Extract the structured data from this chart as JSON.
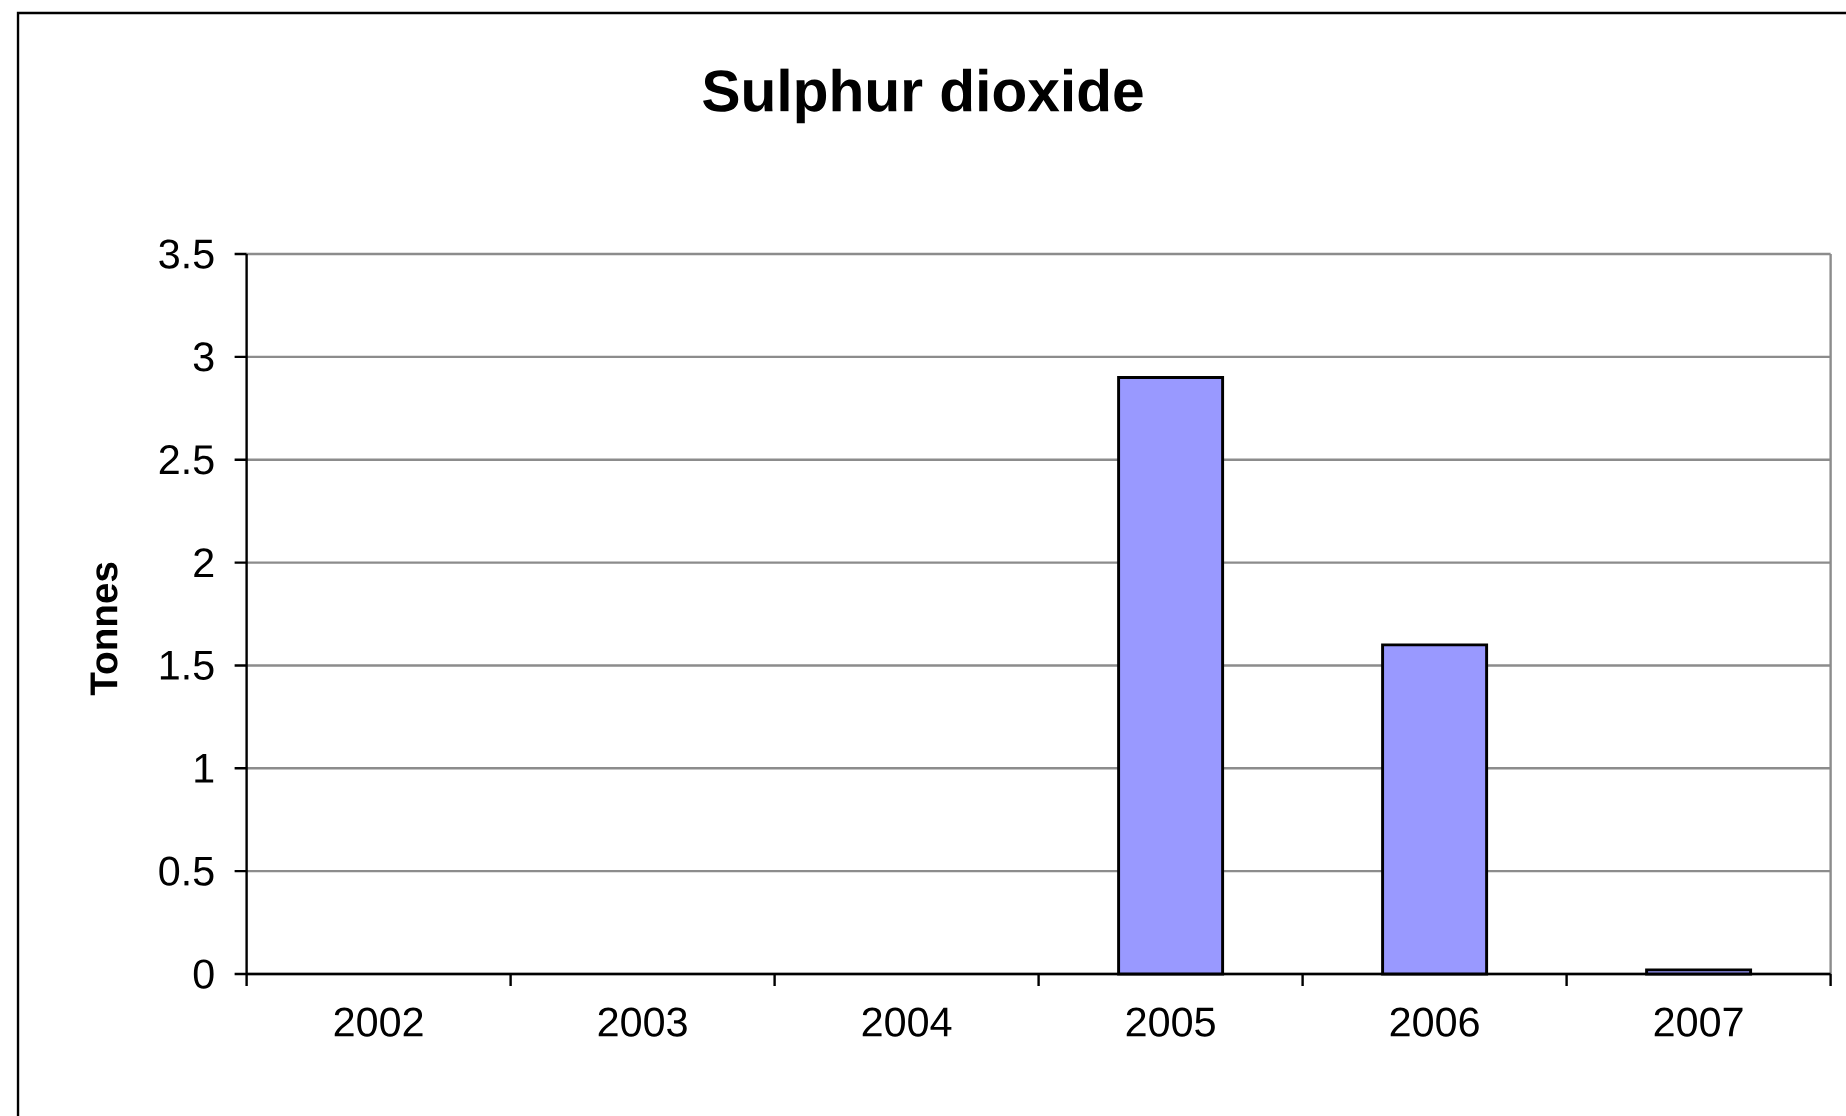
{
  "chart_data": {
    "type": "bar",
    "title": "Sulphur dioxide",
    "ylabel": "Tonnes",
    "categories": [
      "2002",
      "2003",
      "2004",
      "2005",
      "2006",
      "2007"
    ],
    "values": [
      null,
      null,
      null,
      2.9,
      1.6,
      0.02
    ],
    "color": "#9999ff",
    "ylim": [
      0,
      3.5
    ],
    "yticks": [
      0,
      0.5,
      1,
      1.5,
      2,
      2.5,
      3,
      3.5
    ],
    "grid": "y"
  }
}
